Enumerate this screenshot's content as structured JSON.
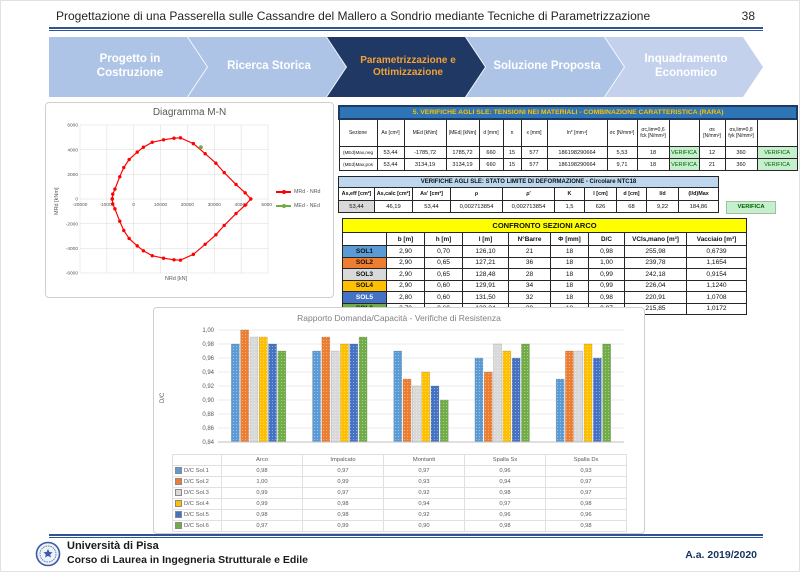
{
  "slide": {
    "title": "Progettazione di una Passerella sulle Cassandre del Mallero a Sondrio mediante Tecniche di Parametrizzazione",
    "page_number": "38"
  },
  "flow": {
    "steps": [
      {
        "label": "Progetto in Costruzione",
        "active": false
      },
      {
        "label": "Ricerca Storica",
        "active": false
      },
      {
        "label": "Parametrizzazione e Ottimizzazione",
        "active": true
      },
      {
        "label": "Soluzione Proposta",
        "active": false
      },
      {
        "label": "Inquadramento Economico",
        "active": false
      }
    ],
    "active_color": "#1F3864",
    "active_text_color": "#F4A136",
    "inactive_color": "#AEC4E6"
  },
  "chart_data": [
    {
      "type": "line",
      "title": "Diagramma M-N",
      "xlabel": "NRd [kN]",
      "ylabel": "MRd [kNm]",
      "xlim": [
        -20000,
        50000
      ],
      "ylim": [
        -6000,
        6000
      ],
      "xtick_step": 10000,
      "ytick_step": 2000,
      "grid": true,
      "legend_position": "right",
      "series": [
        {
          "name": "MRd - NRd",
          "color": "#FF0000",
          "points": [
            [
              -8000,
              0
            ],
            [
              -7800,
              400
            ],
            [
              -7000,
              800
            ],
            [
              -5200,
              1800
            ],
            [
              -3700,
              2550
            ],
            [
              -1700,
              3200
            ],
            [
              1300,
              3800
            ],
            [
              3600,
              4200
            ],
            [
              6900,
              4600
            ],
            [
              11100,
              4800
            ],
            [
              15000,
              4930
            ],
            [
              17400,
              4960
            ],
            [
              22200,
              4490
            ],
            [
              26600,
              3670
            ],
            [
              30600,
              2900
            ],
            [
              33700,
              2140
            ],
            [
              38100,
              1180
            ],
            [
              41500,
              500
            ],
            [
              43600,
              0
            ],
            [
              41500,
              -500
            ],
            [
              38100,
              -1180
            ],
            [
              33700,
              -2140
            ],
            [
              30600,
              -2900
            ],
            [
              26600,
              -3670
            ],
            [
              22200,
              -4490
            ],
            [
              17400,
              -4960
            ],
            [
              15000,
              -4930
            ],
            [
              11100,
              -4800
            ],
            [
              6900,
              -4600
            ],
            [
              3600,
              -4200
            ],
            [
              1300,
              -3800
            ],
            [
              -1700,
              -3200
            ],
            [
              -3700,
              -2550
            ],
            [
              -5200,
              -1800
            ],
            [
              -7000,
              -800
            ],
            [
              -7800,
              -400
            ],
            [
              -8000,
              0
            ]
          ]
        },
        {
          "name": "MEd - NEd",
          "color": "#70AD47",
          "points": [
            [
              25000,
              4200
            ]
          ]
        }
      ]
    },
    {
      "type": "bar",
      "title": "Rapporto Domanda/Capacità - Verifiche di Resistenza",
      "ylabel": "D/C",
      "ylim": [
        0.84,
        1.0
      ],
      "ytick_step": 0.02,
      "grid": true,
      "legend_position": "table-below",
      "categories": [
        "Arco",
        "Impalcato",
        "Montanti",
        "Spalla Sx",
        "Spalla Dx"
      ],
      "series": [
        {
          "name": "D/C Sol.1",
          "color": "#5B9BD5",
          "values": [
            0.98,
            0.97,
            0.97,
            0.96,
            0.93
          ]
        },
        {
          "name": "D/C Sol.2",
          "color": "#ED7D31",
          "values": [
            1.0,
            0.99,
            0.93,
            0.94,
            0.97
          ]
        },
        {
          "name": "D/C Sol.3",
          "color": "#D9D9D9",
          "values": [
            0.99,
            0.97,
            0.92,
            0.98,
            0.97
          ]
        },
        {
          "name": "D/C Sol.4",
          "color": "#FFC000",
          "values": [
            0.99,
            0.98,
            0.94,
            0.97,
            0.98
          ]
        },
        {
          "name": "D/C Sol.5",
          "color": "#4472C4",
          "values": [
            0.98,
            0.98,
            0.92,
            0.96,
            0.96
          ]
        },
        {
          "name": "D/C Sol.6",
          "color": "#70AD47",
          "values": [
            0.97,
            0.99,
            0.9,
            0.98,
            0.98
          ]
        }
      ]
    }
  ],
  "tables": {
    "sle_tensioni": {
      "title": "5. VERIFICHE AGLI SLE: TENSIONI NEI MATERIALI - COMBINAZIONE CARATTERISTICA (RARA)",
      "columns": [
        "Sezione",
        "As [cm²]",
        "MEd [kNm]",
        "|MEd| [kNm]",
        "d [mm]",
        "n",
        "x [mm]",
        "In* [mm⁴]",
        "σc [N/mm²]",
        "σc,lim=0,6 fck [N/mm²]",
        "",
        "σs [N/mm²]",
        "σs,lim=0,8 fyk [N/mm²]",
        ""
      ],
      "rows": [
        [
          "(MEd)Max,neg",
          "53,44",
          "-1785,72",
          "1785,72",
          "660",
          "15",
          "577",
          "186198290664",
          "5,53",
          "18",
          "VERIFICA",
          "12",
          "360",
          "VERIFICA"
        ],
        [
          "(MEd)Max,pos",
          "53,44",
          "3134,19",
          "3134,19",
          "660",
          "15",
          "577",
          "186198290664",
          "9,71",
          "18",
          "VERIFICA",
          "21",
          "360",
          "VERIFICA"
        ]
      ]
    },
    "sle_deformazione": {
      "title": "VERIFICHE AGLI SLE: STATO LIMITE DI DEFORMAZIONE - Circolare NTC18",
      "columns": [
        "As,eff [cm²]",
        "As,calc [cm²]",
        "As' [cm²]",
        "ρ",
        "ρ'",
        "K",
        "l [cm]",
        "d [cm]",
        "l/d",
        "(l/d)Max"
      ],
      "row": [
        "53,44",
        "46,19",
        "53,44",
        "0,002713854",
        "0,002713854",
        "1,5",
        "626",
        "68",
        "9,22",
        "184,86"
      ],
      "verdict": "VERIFICA"
    },
    "confronto": {
      "title": "CONFRONTO SEZIONI ARCO",
      "columns": [
        "b [m]",
        "h [m]",
        "l [m]",
        "N°Barre",
        "Φ [mm]",
        "D/C",
        "VCls,mano [m³]",
        "Vacciaio [m³]"
      ],
      "rows": [
        {
          "label": "SOL1",
          "color": "#5B9BD5",
          "values": [
            "2,90",
            "0,70",
            "126,10",
            "21",
            "18",
            "0,98",
            "255,98",
            "0,6739"
          ]
        },
        {
          "label": "SOL2",
          "color": "#ED7D31",
          "values": [
            "2,90",
            "0,65",
            "127,21",
            "36",
            "18",
            "1,00",
            "239,78",
            "1,1654"
          ]
        },
        {
          "label": "SOL3",
          "color": "#D9D9D9",
          "values": [
            "2,90",
            "0,65",
            "128,48",
            "28",
            "18",
            "0,99",
            "242,18",
            "0,9154"
          ]
        },
        {
          "label": "SOL4",
          "color": "#FFC000",
          "values": [
            "2,90",
            "0,60",
            "129,91",
            "34",
            "18",
            "0,99",
            "226,04",
            "1,1240"
          ]
        },
        {
          "label": "SOL5",
          "color": "#4472C4",
          "values": [
            "2,80",
            "0,60",
            "131,50",
            "32",
            "18",
            "0,98",
            "220,91",
            "1,0708"
          ]
        },
        {
          "label": "SOL6",
          "color": "#70AD47",
          "values": [
            "2,70",
            "0,60",
            "133,24",
            "30",
            "18",
            "0,97",
            "215,85",
            "1,0172"
          ]
        }
      ]
    }
  },
  "footer": {
    "university": "Università di Pisa",
    "course": "Corso di Laurea in Ingegneria Strutturale e Edile",
    "year": "A.a. 2019/2020"
  }
}
